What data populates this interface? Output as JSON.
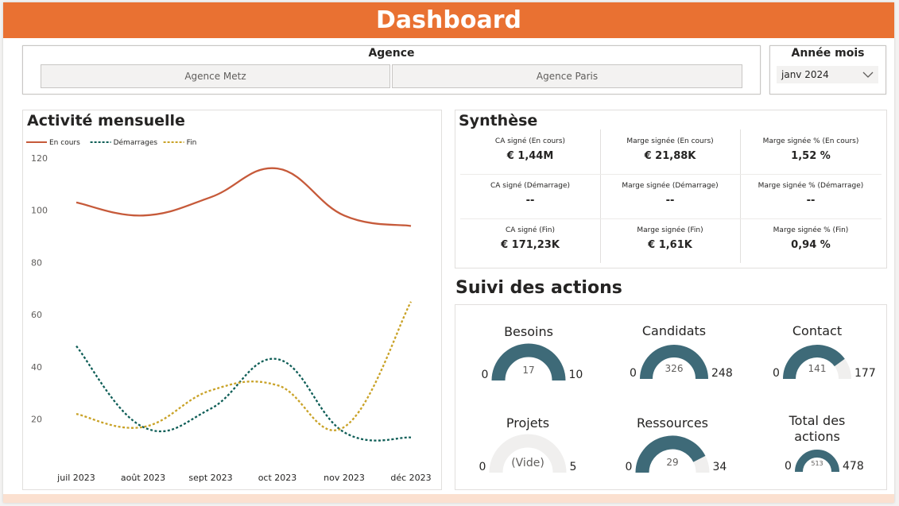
{
  "header": {
    "title": "Dashboard"
  },
  "agency_slicer": {
    "title": "Agence",
    "options": [
      "Agence Metz",
      "Agence Paris"
    ]
  },
  "month_slicer": {
    "title": "Année mois",
    "selected": "janv 2024"
  },
  "activity": {
    "title": "Activité mensuelle",
    "chart_data": {
      "type": "line",
      "categories": [
        "juil 2023",
        "août 2023",
        "sept 2023",
        "oct 2023",
        "nov 2023",
        "déc 2023"
      ],
      "series": [
        {
          "name": "En cours",
          "values": [
            103,
            98,
            105,
            116,
            98,
            94
          ],
          "color": "#c65a3a",
          "style": "solid"
        },
        {
          "name": "Démarrages",
          "values": [
            48,
            17,
            24,
            43,
            15,
            13
          ],
          "color": "#0f5e57",
          "style": "dotted"
        },
        {
          "name": "Fin",
          "values": [
            22,
            17,
            31,
            33,
            17,
            65
          ],
          "color": "#c9a227",
          "style": "dotted"
        }
      ],
      "yticks": [
        20,
        40,
        60,
        80,
        100,
        120
      ],
      "ylim": [
        12,
        120
      ],
      "legend": "top-left",
      "grid": false
    }
  },
  "synthese": {
    "title": "Synthèse",
    "cells": [
      {
        "label": "CA signé (En cours)",
        "value": "€ 1,44M"
      },
      {
        "label": "Marge signée (En cours)",
        "value": "€ 21,88K"
      },
      {
        "label": "Marge signée % (En cours)",
        "value": "1,52 %"
      },
      {
        "label": "CA signé (Démarrage)",
        "value": "--"
      },
      {
        "label": "Marge signée (Démarrage)",
        "value": "--"
      },
      {
        "label": "Marge signée % (Démarrage)",
        "value": "--"
      },
      {
        "label": "CA signé (Fin)",
        "value": "€ 171,23K"
      },
      {
        "label": "Marge signée (Fin)",
        "value": "€ 1,61K"
      },
      {
        "label": "Marge signée % (Fin)",
        "value": "0,94 %"
      }
    ]
  },
  "suivi": {
    "title": "Suivi des actions",
    "gauges": [
      {
        "title": "Besoins",
        "min": "0",
        "max": "10",
        "value": "17",
        "fill": 1.0
      },
      {
        "title": "Candidats",
        "min": "0",
        "max": "248",
        "value": "326",
        "fill": 1.0
      },
      {
        "title": "Contact",
        "min": "0",
        "max": "177",
        "value": "141",
        "fill": 0.8
      },
      {
        "title": "Projets",
        "min": "0",
        "max": "5",
        "value": "(Vide)",
        "fill": 0.0
      },
      {
        "title": "Ressources",
        "min": "0",
        "max": "34",
        "value": "29",
        "fill": 0.85
      },
      {
        "title": "Total des actions",
        "min": "0",
        "max": "478",
        "value": "513",
        "fill": 1.0
      }
    ]
  },
  "colors": {
    "header": "#e97132",
    "gauge_fill": "#3e6a78",
    "gauge_track": "#f0efee"
  }
}
